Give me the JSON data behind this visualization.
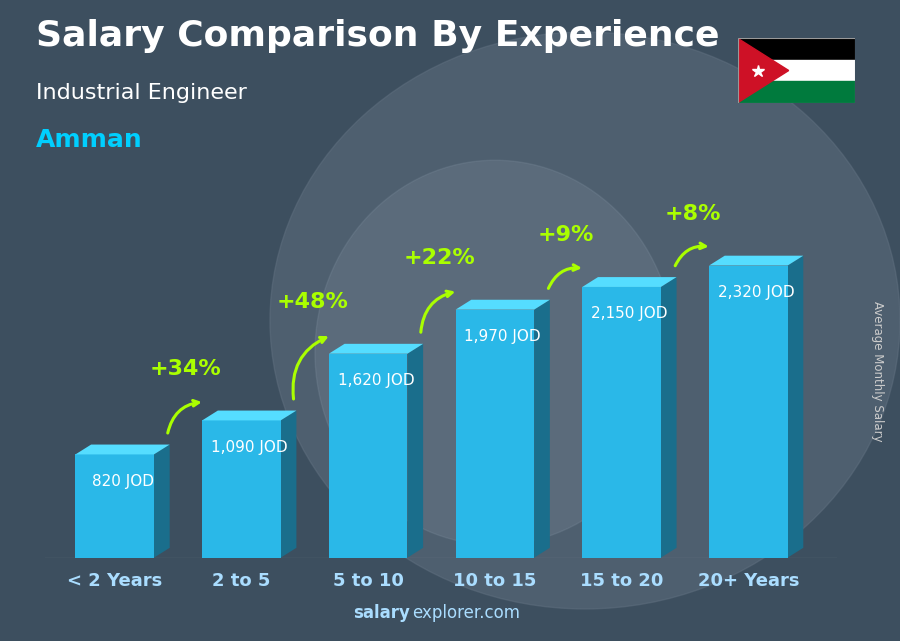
{
  "title": "Salary Comparison By Experience",
  "subtitle": "Industrial Engineer",
  "city": "Amman",
  "ylabel": "Average Monthly Salary",
  "footer_bold": "salary",
  "footer_regular": "explorer.com",
  "categories": [
    "< 2 Years",
    "2 to 5",
    "5 to 10",
    "10 to 15",
    "15 to 20",
    "20+ Years"
  ],
  "values": [
    820,
    1090,
    1620,
    1970,
    2150,
    2320
  ],
  "labels": [
    "820 JOD",
    "1,090 JOD",
    "1,620 JOD",
    "1,970 JOD",
    "2,150 JOD",
    "2,320 JOD"
  ],
  "pct_labels": [
    "+34%",
    "+48%",
    "+22%",
    "+9%",
    "+8%"
  ],
  "bar_color_front": "#2ab8e8",
  "bar_color_side": "#1a6e8c",
  "bar_color_top": "#55ddff",
  "bg_color": "#4a5a6a",
  "title_color": "#ffffff",
  "subtitle_color": "#ffffff",
  "city_color": "#00cfff",
  "label_color": "#ffffff",
  "pct_color": "#aaff00",
  "footer_color": "#aaddff",
  "ylabel_color": "#cccccc",
  "title_fontsize": 26,
  "subtitle_fontsize": 16,
  "city_fontsize": 18,
  "label_fontsize": 11,
  "pct_fontsize": 16,
  "bar_width": 0.62,
  "ylim": [
    0,
    2800
  ]
}
